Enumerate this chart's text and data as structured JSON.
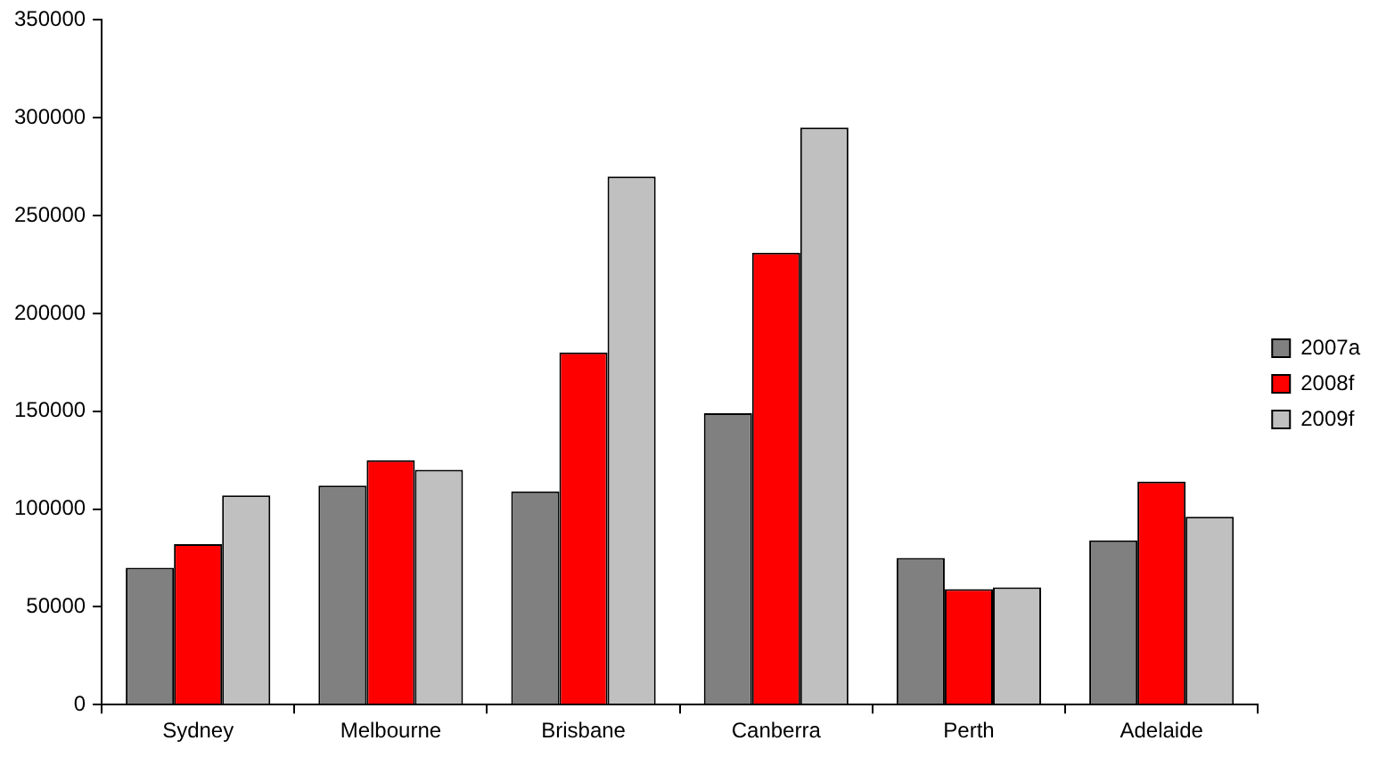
{
  "chart_data": {
    "type": "bar",
    "categories": [
      "Sydney",
      "Melbourne",
      "Brisbane",
      "Canberra",
      "Perth",
      "Adelaide"
    ],
    "series": [
      {
        "name": "2007a",
        "color": "#808080",
        "values": [
          70000,
          112000,
          109000,
          149000,
          75000,
          84000
        ]
      },
      {
        "name": "2008f",
        "color": "#ff0000",
        "values": [
          82000,
          125000,
          180000,
          231000,
          59000,
          114000
        ]
      },
      {
        "name": "2009f",
        "color": "#c0c0c0",
        "values": [
          107000,
          120000,
          270000,
          295000,
          60000,
          96000
        ]
      }
    ],
    "ylim": [
      0,
      350000
    ],
    "yticks": [
      0,
      50000,
      100000,
      150000,
      200000,
      250000,
      300000,
      350000
    ],
    "grid": false,
    "legend": "right"
  }
}
